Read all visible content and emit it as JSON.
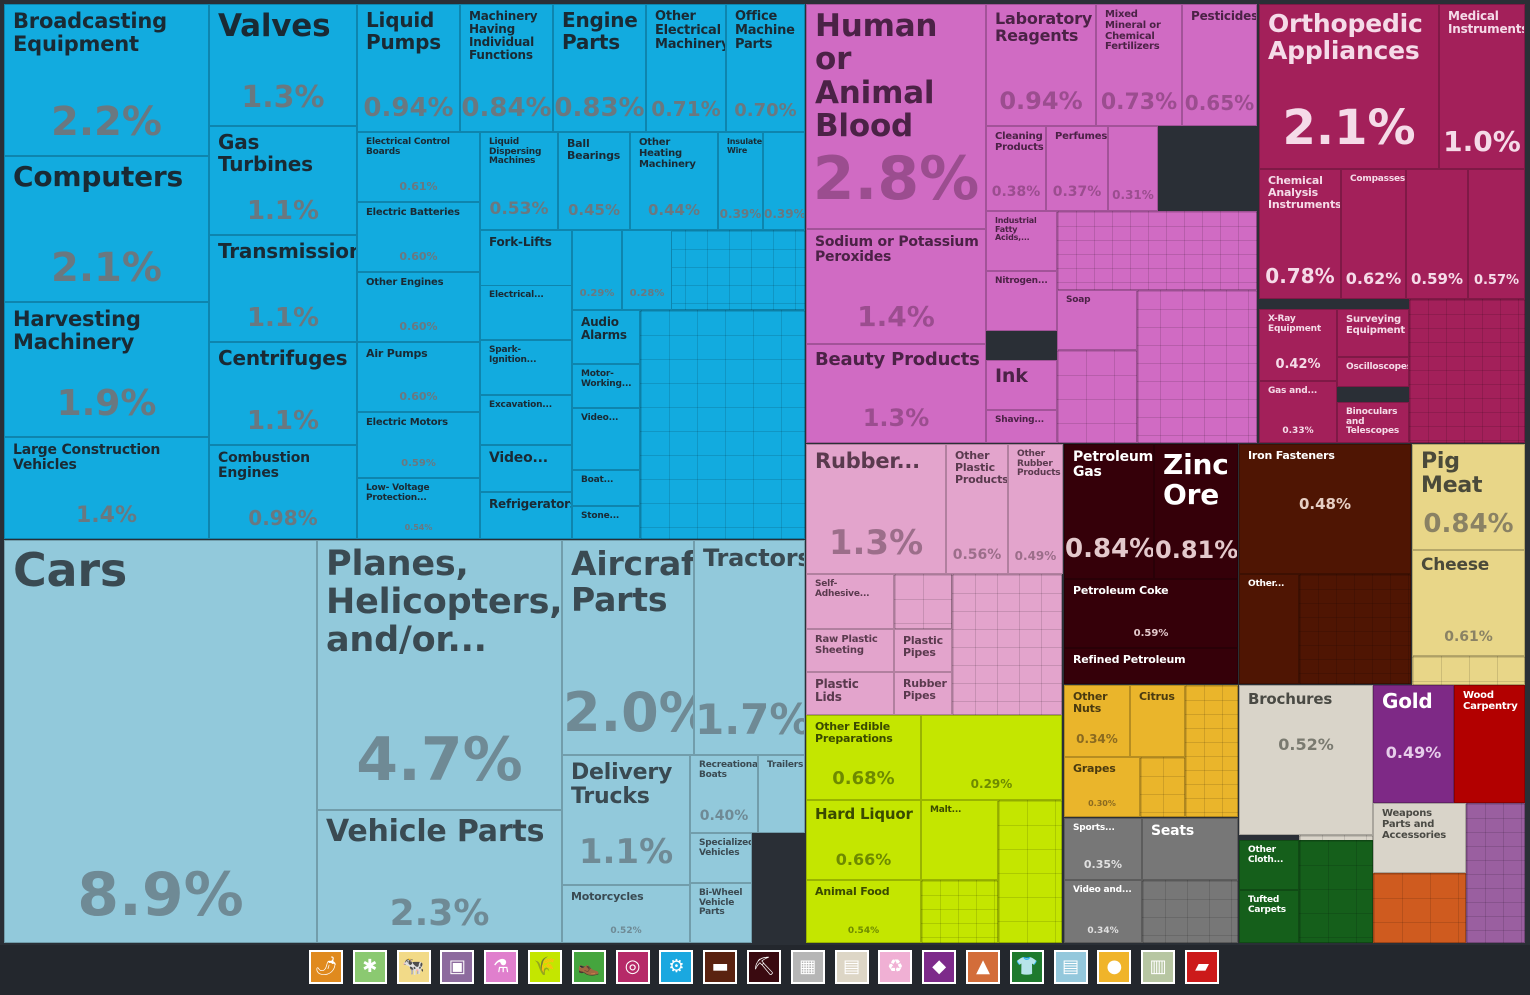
{
  "chart_data": {
    "type": "treemap",
    "units": "percent of total exports",
    "colors": {
      "machines": "#12abdf",
      "transportation": "#92c9db",
      "chemicals": "#d06bc3",
      "instruments": "#a3205a",
      "plastics": "#e3a4cc",
      "minerals": "#350009",
      "metals": "#4f1503",
      "animal": "#e8d688",
      "vegetable": "#eab52b",
      "foodstuffs": "#c4e600",
      "misc": "#d9d4c9",
      "precious": "#7e2986",
      "wood": "#b20000",
      "textiles": "#155f1b",
      "footwear": "#777777",
      "other": "#9a5fa0"
    },
    "items": [
      {
        "name": "Broadcasting Equipment",
        "value": "2.2%",
        "group": "machines"
      },
      {
        "name": "Computers",
        "value": "2.1%",
        "group": "machines"
      },
      {
        "name": "Harvesting Machinery",
        "value": "1.9%",
        "group": "machines"
      },
      {
        "name": "Large Construction Vehicles",
        "value": "1.4%",
        "group": "machines"
      },
      {
        "name": "Valves",
        "value": "1.3%",
        "group": "machines"
      },
      {
        "name": "Gas Turbines",
        "value": "1.1%",
        "group": "machines"
      },
      {
        "name": "Transmissions",
        "value": "1.1%",
        "group": "machines"
      },
      {
        "name": "Centrifuges",
        "value": "1.1%",
        "group": "machines"
      },
      {
        "name": "Combustion Engines",
        "value": "0.98%",
        "group": "machines"
      },
      {
        "name": "Liquid Pumps",
        "value": "0.94%",
        "group": "machines"
      },
      {
        "name": "Machinery Having Individual Functions",
        "value": "0.84%",
        "group": "machines"
      },
      {
        "name": "Engine Parts",
        "value": "0.83%",
        "group": "machines"
      },
      {
        "name": "Other Electrical Machinery",
        "value": "0.71%",
        "group": "machines"
      },
      {
        "name": "Office Machine Parts",
        "value": "0.70%",
        "group": "machines"
      },
      {
        "name": "Electrical Control Boards",
        "value": "0.61%",
        "group": "machines"
      },
      {
        "name": "Electric Batteries",
        "value": "0.60%",
        "group": "machines"
      },
      {
        "name": "Other Engines",
        "value": "0.60%",
        "group": "machines"
      },
      {
        "name": "Air Pumps",
        "value": "0.60%",
        "group": "machines"
      },
      {
        "name": "Electric Motors",
        "value": "0.59%",
        "group": "machines"
      },
      {
        "name": "Low- Voltage Protection...",
        "value": "0.54%",
        "group": "machines"
      },
      {
        "name": "Liquid Dispersing Machines",
        "value": "0.53%",
        "group": "machines"
      },
      {
        "name": "Ball Bearings",
        "value": "0.45%",
        "group": "machines"
      },
      {
        "name": "Other Heating Machinery",
        "value": "0.44%",
        "group": "machines"
      },
      {
        "name": "Insulated Wire",
        "value": "0.39%",
        "group": "machines"
      },
      {
        "name": "",
        "value": "0.39%",
        "group": "machines"
      },
      {
        "name": "Fork-Lifts",
        "value": "",
        "group": "machines"
      },
      {
        "name": "",
        "value": "0.29%",
        "group": "machines"
      },
      {
        "name": "",
        "value": "0.28%",
        "group": "machines"
      },
      {
        "name": "Electrical...",
        "value": "",
        "group": "machines"
      },
      {
        "name": "Spark- Ignition...",
        "value": "",
        "group": "machines"
      },
      {
        "name": "Excavation...",
        "value": "",
        "group": "machines"
      },
      {
        "name": "Video...",
        "value": "",
        "group": "machines"
      },
      {
        "name": "Refrigerators",
        "value": "",
        "group": "machines"
      },
      {
        "name": "Audio Alarms",
        "value": "",
        "group": "machines"
      },
      {
        "name": "Motor- Working...",
        "value": "",
        "group": "machines"
      },
      {
        "name": "Video...",
        "value": "",
        "group": "machines"
      },
      {
        "name": "Boat...",
        "value": "",
        "group": "machines"
      },
      {
        "name": "Stone...",
        "value": "",
        "group": "machines"
      },
      {
        "name": "Cars",
        "value": "8.9%",
        "group": "transportation"
      },
      {
        "name": "Planes, Helicopters, and/or...",
        "value": "4.7%",
        "group": "transportation"
      },
      {
        "name": "Vehicle Parts",
        "value": "2.3%",
        "group": "transportation"
      },
      {
        "name": "Aircraft Parts",
        "value": "2.0%",
        "group": "transportation"
      },
      {
        "name": "Tractors",
        "value": "1.7%",
        "group": "transportation"
      },
      {
        "name": "Delivery Trucks",
        "value": "1.1%",
        "group": "transportation"
      },
      {
        "name": "Recreational Boats",
        "value": "0.40%",
        "group": "transportation"
      },
      {
        "name": "Trailers",
        "value": "",
        "group": "transportation"
      },
      {
        "name": "Specialized Vehicles",
        "value": "",
        "group": "transportation"
      },
      {
        "name": "Motorcycles",
        "value": "0.52%",
        "group": "transportation"
      },
      {
        "name": "Bi-Wheel Vehicle Parts",
        "value": "",
        "group": "transportation"
      },
      {
        "name": "Human or Animal Blood",
        "value": "2.8%",
        "group": "chemicals"
      },
      {
        "name": "Sodium or Potassium Peroxides",
        "value": "1.4%",
        "group": "chemicals"
      },
      {
        "name": "Beauty Products",
        "value": "1.3%",
        "group": "chemicals"
      },
      {
        "name": "Laboratory Reagents",
        "value": "0.94%",
        "group": "chemicals"
      },
      {
        "name": "Mixed Mineral or Chemical Fertilizers",
        "value": "0.73%",
        "group": "chemicals"
      },
      {
        "name": "Pesticides",
        "value": "0.65%",
        "group": "chemicals"
      },
      {
        "name": "Cleaning Products",
        "value": "0.38%",
        "group": "chemicals"
      },
      {
        "name": "Perfumes",
        "value": "0.37%",
        "group": "chemicals"
      },
      {
        "name": "",
        "value": "0.31%",
        "group": "chemicals"
      },
      {
        "name": "Industrial Fatty Acids,...",
        "value": "",
        "group": "chemicals"
      },
      {
        "name": "Nitrogen...",
        "value": "",
        "group": "chemicals"
      },
      {
        "name": "Soap",
        "value": "",
        "group": "chemicals"
      },
      {
        "name": "Ink",
        "value": "",
        "group": "chemicals"
      },
      {
        "name": "Shaving...",
        "value": "",
        "group": "chemicals"
      },
      {
        "name": "Orthopedic Appliances",
        "value": "2.1%",
        "group": "instruments"
      },
      {
        "name": "Medical Instruments",
        "value": "1.0%",
        "group": "instruments"
      },
      {
        "name": "Chemical Analysis Instruments",
        "value": "0.78%",
        "group": "instruments"
      },
      {
        "name": "Compasses",
        "value": "0.62%",
        "group": "instruments"
      },
      {
        "name": "",
        "value": "0.59%",
        "group": "instruments"
      },
      {
        "name": "",
        "value": "0.57%",
        "group": "instruments"
      },
      {
        "name": "X-Ray Equipment",
        "value": "0.42%",
        "group": "instruments"
      },
      {
        "name": "Surveying Equipment",
        "value": "",
        "group": "instruments"
      },
      {
        "name": "Oscilloscopes",
        "value": "",
        "group": "instruments"
      },
      {
        "name": "Gas and...",
        "value": "0.33%",
        "group": "instruments"
      },
      {
        "name": "Binoculars and Telescopes",
        "value": "",
        "group": "instruments"
      },
      {
        "name": "Rubber...",
        "value": "1.3%",
        "group": "plastics"
      },
      {
        "name": "Other Plastic Products",
        "value": "0.56%",
        "group": "plastics"
      },
      {
        "name": "Other Rubber Products",
        "value": "0.49%",
        "group": "plastics"
      },
      {
        "name": "Self- Adhesive...",
        "value": "",
        "group": "plastics"
      },
      {
        "name": "Raw Plastic Sheeting",
        "value": "",
        "group": "plastics"
      },
      {
        "name": "Plastic Pipes",
        "value": "",
        "group": "plastics"
      },
      {
        "name": "Plastic Lids",
        "value": "",
        "group": "plastics"
      },
      {
        "name": "Rubber Pipes",
        "value": "",
        "group": "plastics"
      },
      {
        "name": "Petroleum Gas",
        "value": "0.84%",
        "group": "minerals"
      },
      {
        "name": "Zinc Ore",
        "value": "0.81%",
        "group": "minerals"
      },
      {
        "name": "Petroleum Coke",
        "value": "0.59%",
        "group": "minerals"
      },
      {
        "name": "Refined Petroleum",
        "value": "",
        "group": "minerals"
      },
      {
        "name": "Iron Fasteners",
        "value": "0.48%",
        "group": "metals"
      },
      {
        "name": "Other...",
        "value": "",
        "group": "metals"
      },
      {
        "name": "Pig Meat",
        "value": "0.84%",
        "group": "animal"
      },
      {
        "name": "Cheese",
        "value": "0.61%",
        "group": "animal"
      },
      {
        "name": "Other Nuts",
        "value": "0.34%",
        "group": "vegetable"
      },
      {
        "name": "Citrus",
        "value": "",
        "group": "vegetable"
      },
      {
        "name": "Grapes",
        "value": "0.30%",
        "group": "vegetable"
      },
      {
        "name": "Other Edible Preparations",
        "value": "0.68%",
        "group": "foodstuffs"
      },
      {
        "name": "",
        "value": "0.29%",
        "group": "foodstuffs"
      },
      {
        "name": "Hard Liquor",
        "value": "0.66%",
        "group": "foodstuffs"
      },
      {
        "name": "Malt...",
        "value": "",
        "group": "foodstuffs"
      },
      {
        "name": "Animal Food",
        "value": "0.54%",
        "group": "foodstuffs"
      },
      {
        "name": "Brochures",
        "value": "0.52%",
        "group": "misc"
      },
      {
        "name": "Gold",
        "value": "0.49%",
        "group": "precious"
      },
      {
        "name": "Wood Carpentry",
        "value": "",
        "group": "wood"
      },
      {
        "name": "Weapons Parts and Accessories",
        "value": "",
        "group": "misc"
      },
      {
        "name": "Sports...",
        "value": "0.35%",
        "group": "footwear"
      },
      {
        "name": "Seats",
        "value": "",
        "group": "footwear"
      },
      {
        "name": "Video and...",
        "value": "0.34%",
        "group": "footwear"
      },
      {
        "name": "Other Cloth...",
        "value": "",
        "group": "textiles"
      },
      {
        "name": "Tufted Carpets",
        "value": "",
        "group": "textiles"
      }
    ]
  },
  "legend": [
    {
      "icon": "vegetable-products-icon",
      "glyph": "🌶",
      "color": "#e08a1e"
    },
    {
      "icon": "animal-hides-icon",
      "glyph": "✱",
      "color": "#8bc971"
    },
    {
      "icon": "animal-products-icon",
      "glyph": "🐄",
      "color": "#f2da88"
    },
    {
      "icon": "art-icon",
      "glyph": "▣",
      "color": "#8d6b9e"
    },
    {
      "icon": "chemical-products-icon",
      "glyph": "⚗",
      "color": "#e07fcd"
    },
    {
      "icon": "foodstuffs-icon",
      "glyph": "🌾",
      "color": "#c4e600"
    },
    {
      "icon": "footwear-icon",
      "glyph": "👞",
      "color": "#45a53e"
    },
    {
      "icon": "instruments-icon",
      "glyph": "◎",
      "color": "#b62a68"
    },
    {
      "icon": "machines-icon",
      "glyph": "⚙",
      "color": "#1aa8e0"
    },
    {
      "icon": "metals-icon",
      "glyph": "▬",
      "color": "#5a2210"
    },
    {
      "icon": "mineral-products-icon",
      "glyph": "⛏",
      "color": "#3a0a10"
    },
    {
      "icon": "miscellaneous-icon",
      "glyph": "▦",
      "color": "#b6b6b6"
    },
    {
      "icon": "paper-goods-icon",
      "glyph": "▤",
      "color": "#ddd6c6"
    },
    {
      "icon": "plastics-rubbers-icon",
      "glyph": "♻",
      "color": "#f0b0d4"
    },
    {
      "icon": "precious-metals-icon",
      "glyph": "◆",
      "color": "#7d2a8a"
    },
    {
      "icon": "stone-and-glass-icon",
      "glyph": "▲",
      "color": "#d36d3a"
    },
    {
      "icon": "textiles-icon",
      "glyph": "👕",
      "color": "#1f7a2e"
    },
    {
      "icon": "transportation-icon",
      "glyph": "▤",
      "color": "#94c8dc"
    },
    {
      "icon": "vegetable-icon",
      "glyph": "●",
      "color": "#f0b42a"
    },
    {
      "icon": "weapons-icon",
      "glyph": "▥",
      "color": "#b7c6a2"
    },
    {
      "icon": "wood-products-icon",
      "glyph": "▰",
      "color": "#cc1a1a"
    }
  ]
}
